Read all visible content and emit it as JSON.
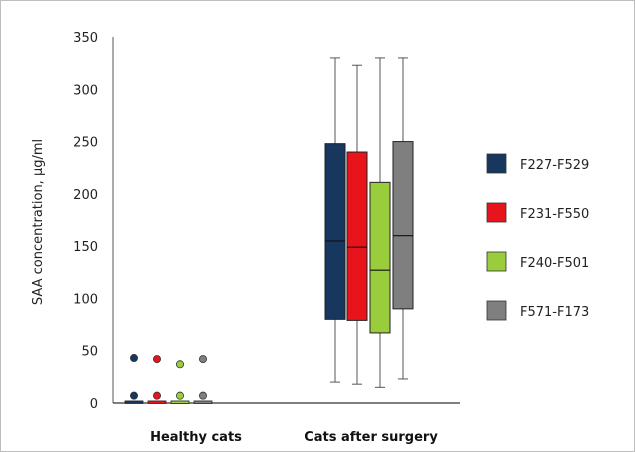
{
  "chart_data": {
    "type": "box",
    "title": "",
    "xlabel": "",
    "ylabel": "SAA concentration, µg/ml",
    "ylim": [
      0,
      350
    ],
    "yticks": [
      0,
      50,
      100,
      150,
      200,
      250,
      300,
      350
    ],
    "categories": [
      "Healthy cats",
      "Cats after surgery"
    ],
    "legend_position": "right",
    "grid": false,
    "series": [
      {
        "name": "F227-F529",
        "color": "#17375e",
        "boxes": [
          {
            "category": "Healthy cats",
            "min": 0,
            "q1": 0,
            "median": 0,
            "q3": 1,
            "max": 1,
            "outliers": [
              7,
              43
            ]
          },
          {
            "category": "Cats after surgery",
            "min": 20,
            "q1": 80,
            "median": 155,
            "q3": 248,
            "max": 330,
            "outliers": []
          }
        ]
      },
      {
        "name": "F231-F550",
        "color": "#e8141c",
        "boxes": [
          {
            "category": "Healthy cats",
            "min": 0,
            "q1": 0,
            "median": 0,
            "q3": 1,
            "max": 1,
            "outliers": [
              7,
              42
            ]
          },
          {
            "category": "Cats after surgery",
            "min": 18,
            "q1": 79,
            "median": 149,
            "q3": 240,
            "max": 323,
            "outliers": []
          }
        ]
      },
      {
        "name": "F240-F501",
        "color": "#9acd3c",
        "boxes": [
          {
            "category": "Healthy cats",
            "min": 0,
            "q1": 0,
            "median": 0,
            "q3": 1,
            "max": 1,
            "outliers": [
              7,
              37
            ]
          },
          {
            "category": "Cats after surgery",
            "min": 15,
            "q1": 67,
            "median": 127,
            "q3": 211,
            "max": 330,
            "outliers": []
          }
        ]
      },
      {
        "name": "F571-F173",
        "color": "#7f7f7f",
        "boxes": [
          {
            "category": "Healthy cats",
            "min": 0,
            "q1": 0,
            "median": 0,
            "q3": 1,
            "max": 1,
            "outliers": [
              7,
              42
            ]
          },
          {
            "category": "Cats after surgery",
            "min": 23,
            "q1": 90,
            "median": 160,
            "q3": 250,
            "max": 330,
            "outliers": []
          }
        ]
      }
    ]
  }
}
